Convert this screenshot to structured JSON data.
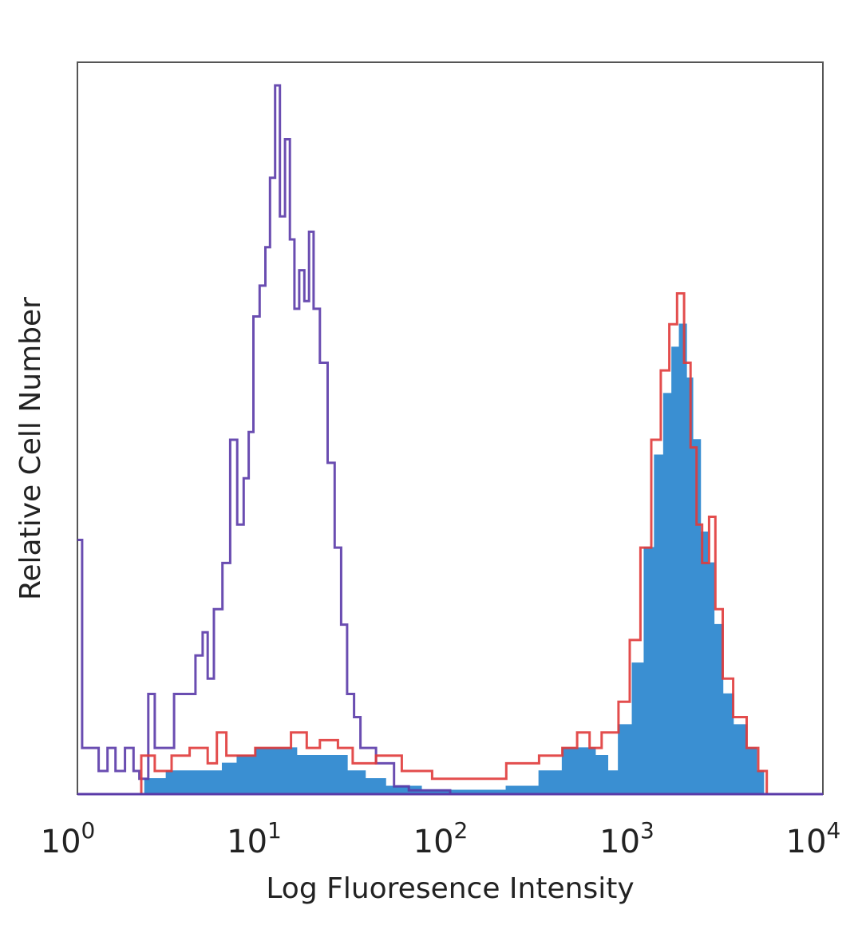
{
  "chart_data": {
    "type": "histogram",
    "x_scale": "log",
    "xlim": [
      1,
      10000
    ],
    "xlabel": "Log Fluoresence Intensity",
    "ylabel": "Relative Cell Number",
    "y_tick_labels": false,
    "grid": false,
    "legend": "none",
    "x_ticks": [
      {
        "base": "10",
        "exp": "0",
        "value": 1
      },
      {
        "base": "10",
        "exp": "1",
        "value": 10
      },
      {
        "base": "10",
        "exp": "2",
        "value": 100
      },
      {
        "base": "10",
        "exp": "3",
        "value": 1000
      },
      {
        "base": "10",
        "exp": "4",
        "value": 10000
      }
    ],
    "series": [
      {
        "style": "outline",
        "color": "#5a3aa8",
        "points": [
          [
            1.0,
            33
          ],
          [
            1.06,
            6
          ],
          [
            1.15,
            6
          ],
          [
            1.3,
            3
          ],
          [
            1.45,
            6
          ],
          [
            1.6,
            3
          ],
          [
            1.8,
            6
          ],
          [
            2.0,
            3
          ],
          [
            2.15,
            2
          ],
          [
            2.4,
            13
          ],
          [
            2.6,
            6
          ],
          [
            3.0,
            6
          ],
          [
            3.3,
            13
          ],
          [
            3.9,
            13
          ],
          [
            4.3,
            18
          ],
          [
            4.7,
            21
          ],
          [
            5.0,
            15
          ],
          [
            5.4,
            24
          ],
          [
            6.0,
            30
          ],
          [
            6.6,
            46
          ],
          [
            7.2,
            35
          ],
          [
            7.8,
            41
          ],
          [
            8.3,
            47
          ],
          [
            8.8,
            62
          ],
          [
            9.5,
            66
          ],
          [
            10.2,
            71
          ],
          [
            10.8,
            80
          ],
          [
            11.5,
            92
          ],
          [
            12.2,
            75
          ],
          [
            13.0,
            85
          ],
          [
            13.8,
            72
          ],
          [
            14.6,
            63
          ],
          [
            15.5,
            68
          ],
          [
            16.5,
            64
          ],
          [
            17.5,
            73
          ],
          [
            18.5,
            63
          ],
          [
            20.0,
            56
          ],
          [
            22.0,
            43
          ],
          [
            24.0,
            32
          ],
          [
            26.0,
            22
          ],
          [
            28.0,
            13
          ],
          [
            30.5,
            10
          ],
          [
            33.0,
            6
          ],
          [
            36.0,
            6
          ],
          [
            40.0,
            4
          ],
          [
            45.0,
            4
          ],
          [
            50.0,
            1
          ],
          [
            60.0,
            0.5
          ],
          [
            100.0,
            0
          ],
          [
            10000.0,
            0
          ]
        ]
      },
      {
        "style": "outline",
        "color": "#e03a3a",
        "points": [
          [
            1.0,
            0
          ],
          [
            2.0,
            0
          ],
          [
            2.2,
            5
          ],
          [
            2.6,
            3
          ],
          [
            3.2,
            5
          ],
          [
            4.0,
            6
          ],
          [
            5.0,
            4
          ],
          [
            5.6,
            8
          ],
          [
            6.3,
            5
          ],
          [
            7.5,
            5
          ],
          [
            9.0,
            6
          ],
          [
            11.0,
            6
          ],
          [
            14.0,
            8
          ],
          [
            17.0,
            6
          ],
          [
            20.0,
            7
          ],
          [
            25.0,
            6
          ],
          [
            30.0,
            4
          ],
          [
            40.0,
            5
          ],
          [
            55.0,
            3
          ],
          [
            80.0,
            2
          ],
          [
            120.0,
            2
          ],
          [
            200.0,
            4
          ],
          [
            300.0,
            5
          ],
          [
            400.0,
            6
          ],
          [
            480.0,
            8
          ],
          [
            560.0,
            6
          ],
          [
            650.0,
            8
          ],
          [
            800.0,
            12
          ],
          [
            920.0,
            20
          ],
          [
            1050.0,
            32
          ],
          [
            1200.0,
            46
          ],
          [
            1350.0,
            55
          ],
          [
            1500.0,
            61
          ],
          [
            1650.0,
            65
          ],
          [
            1800.0,
            56
          ],
          [
            1950.0,
            45
          ],
          [
            2100.0,
            35
          ],
          [
            2250.0,
            30
          ],
          [
            2450.0,
            36
          ],
          [
            2650.0,
            24
          ],
          [
            2900.0,
            15
          ],
          [
            3300.0,
            10
          ],
          [
            3900.0,
            6
          ],
          [
            4500.0,
            3
          ],
          [
            5000.0,
            0
          ],
          [
            10000.0,
            0
          ]
        ]
      },
      {
        "style": "filled",
        "color": "#3a8fd2",
        "points": [
          [
            1.0,
            0
          ],
          [
            2.0,
            0
          ],
          [
            2.3,
            2
          ],
          [
            3.0,
            3
          ],
          [
            4.0,
            3
          ],
          [
            5.0,
            3
          ],
          [
            6.0,
            4
          ],
          [
            7.2,
            5
          ],
          [
            9.0,
            6
          ],
          [
            12.0,
            6
          ],
          [
            15.0,
            5
          ],
          [
            18.0,
            5
          ],
          [
            22.0,
            5
          ],
          [
            28.0,
            3
          ],
          [
            35.0,
            2
          ],
          [
            45.0,
            1
          ],
          [
            70.0,
            0.5
          ],
          [
            200.0,
            1
          ],
          [
            300.0,
            3
          ],
          [
            400.0,
            6
          ],
          [
            500.0,
            6
          ],
          [
            600.0,
            5
          ],
          [
            700.0,
            3
          ],
          [
            800.0,
            9
          ],
          [
            950.0,
            17
          ],
          [
            1100.0,
            32
          ],
          [
            1250.0,
            44
          ],
          [
            1400.0,
            52
          ],
          [
            1550.0,
            58
          ],
          [
            1700.0,
            61
          ],
          [
            1850.0,
            54
          ],
          [
            2000.0,
            46
          ],
          [
            2200.0,
            34
          ],
          [
            2400.0,
            30
          ],
          [
            2600.0,
            22
          ],
          [
            2900.0,
            13
          ],
          [
            3300.0,
            9
          ],
          [
            3900.0,
            6
          ],
          [
            4400.0,
            3
          ],
          [
            4800.0,
            0
          ],
          [
            10000.0,
            0
          ]
        ]
      }
    ]
  }
}
